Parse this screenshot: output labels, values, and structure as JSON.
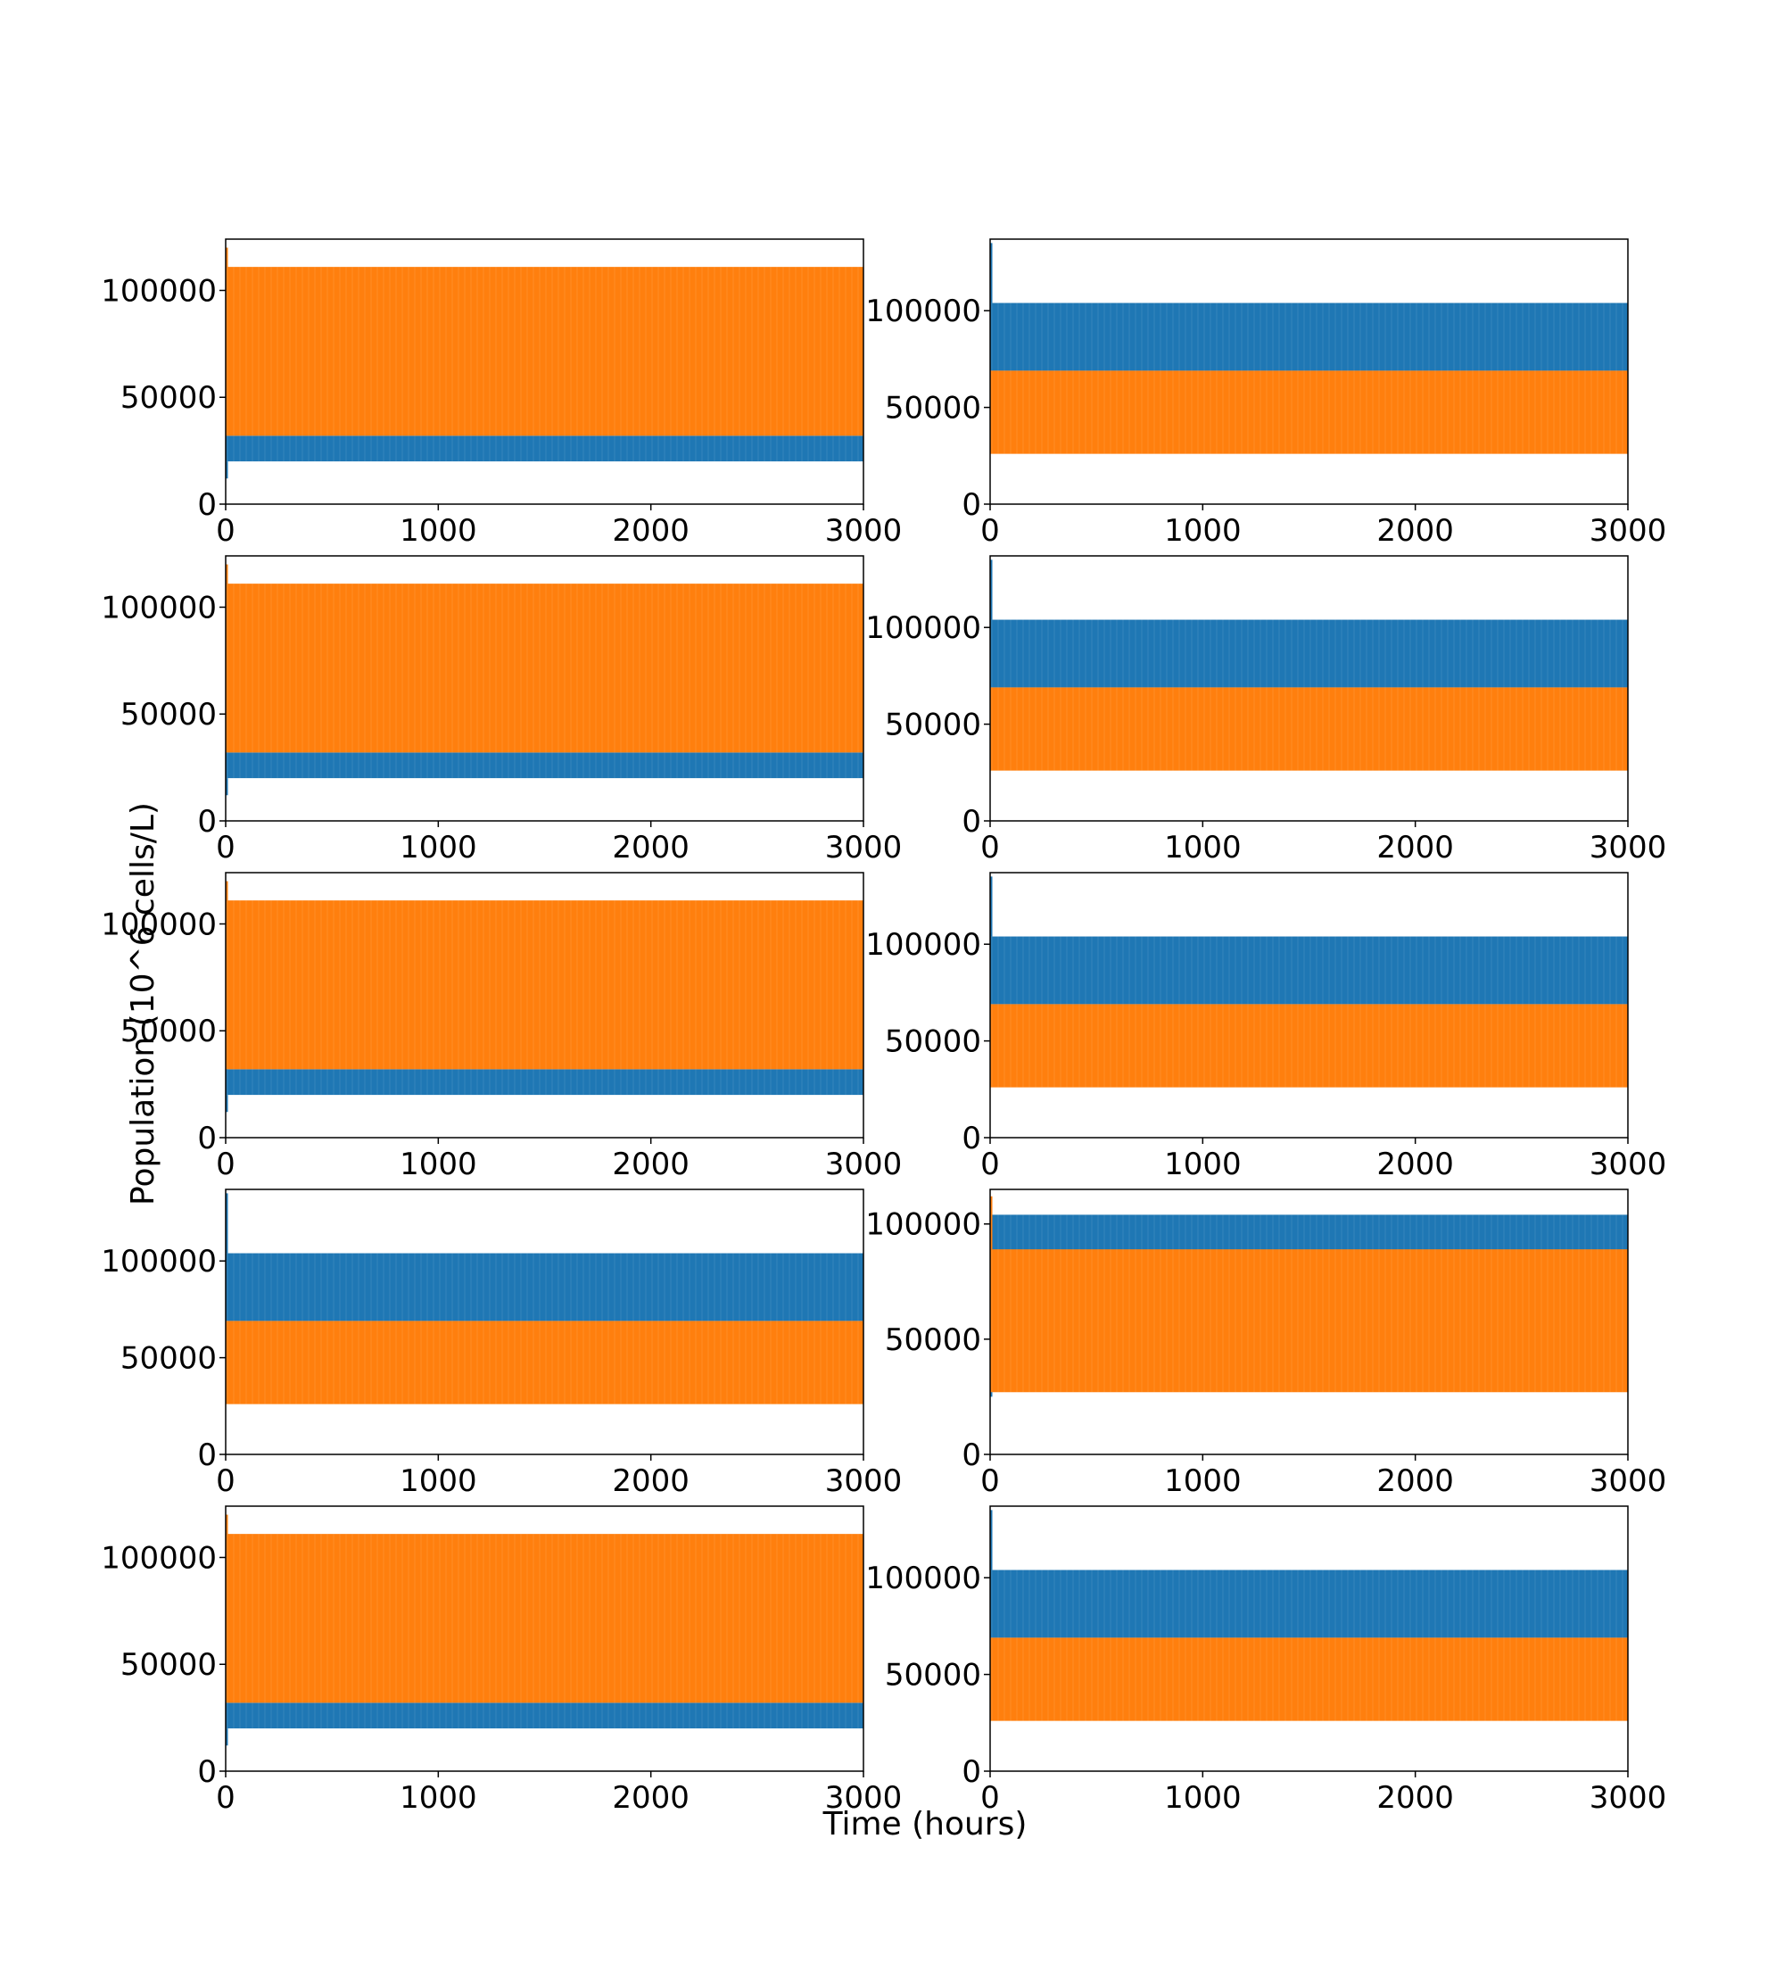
{
  "figure": {
    "xlabel": "Time (hours)",
    "ylabel": "Population (10^6 cells/L)"
  },
  "colors": {
    "series_a": "#1f77b4",
    "series_b": "#ff7f0e"
  },
  "chart_data": [
    {
      "type": "line",
      "panel": "row1-left",
      "xlim": [
        0,
        3000
      ],
      "ylim": [
        0,
        124000
      ],
      "xticks": [
        "0",
        "1000",
        "2000",
        "3000"
      ],
      "yticks": [
        "0",
        "50000",
        "100000"
      ],
      "series": [
        {
          "color": "#1f77b4",
          "x": [
            0,
            3000
          ],
          "band": [
            20000,
            32000
          ],
          "spike_max": 120000,
          "spike_min": 12000
        },
        {
          "color": "#ff7f0e",
          "x": [
            0,
            3000
          ],
          "band": [
            32000,
            111000
          ],
          "spike_max": 120000
        }
      ]
    },
    {
      "type": "line",
      "panel": "row1-right",
      "xlim": [
        0,
        3000
      ],
      "ylim": [
        0,
        137000
      ],
      "xticks": [
        "0",
        "1000",
        "2000",
        "3000"
      ],
      "yticks": [
        "0",
        "50000",
        "100000"
      ],
      "series": [
        {
          "color": "#1f77b4",
          "x": [
            0,
            3000
          ],
          "band": [
            69000,
            104000
          ],
          "spike_max": 135000
        },
        {
          "color": "#ff7f0e",
          "x": [
            0,
            3000
          ],
          "band": [
            26000,
            69000
          ]
        }
      ]
    },
    {
      "type": "line",
      "panel": "row2-left",
      "xlim": [
        0,
        3000
      ],
      "ylim": [
        0,
        124000
      ],
      "xticks": [
        "0",
        "1000",
        "2000",
        "3000"
      ],
      "yticks": [
        "0",
        "50000",
        "100000"
      ],
      "series": [
        {
          "color": "#1f77b4",
          "x": [
            0,
            3000
          ],
          "band": [
            20000,
            32000
          ],
          "spike_max": 120000,
          "spike_min": 12000
        },
        {
          "color": "#ff7f0e",
          "x": [
            0,
            3000
          ],
          "band": [
            32000,
            111000
          ],
          "spike_max": 120000
        }
      ]
    },
    {
      "type": "line",
      "panel": "row2-right",
      "xlim": [
        0,
        3000
      ],
      "ylim": [
        0,
        137000
      ],
      "xticks": [
        "0",
        "1000",
        "2000",
        "3000"
      ],
      "yticks": [
        "0",
        "50000",
        "100000"
      ],
      "series": [
        {
          "color": "#1f77b4",
          "x": [
            0,
            3000
          ],
          "band": [
            69000,
            104000
          ],
          "spike_max": 135000
        },
        {
          "color": "#ff7f0e",
          "x": [
            0,
            3000
          ],
          "band": [
            26000,
            69000
          ]
        }
      ]
    },
    {
      "type": "line",
      "panel": "row3-left",
      "xlim": [
        0,
        3000
      ],
      "ylim": [
        0,
        124000
      ],
      "xticks": [
        "0",
        "1000",
        "2000",
        "3000"
      ],
      "yticks": [
        "0",
        "50000",
        "100000"
      ],
      "series": [
        {
          "color": "#1f77b4",
          "x": [
            0,
            3000
          ],
          "band": [
            20000,
            32000
          ],
          "spike_max": 120000,
          "spike_min": 12000
        },
        {
          "color": "#ff7f0e",
          "x": [
            0,
            3000
          ],
          "band": [
            32000,
            111000
          ],
          "spike_max": 120000
        }
      ]
    },
    {
      "type": "line",
      "panel": "row3-right",
      "xlim": [
        0,
        3000
      ],
      "ylim": [
        0,
        137000
      ],
      "xticks": [
        "0",
        "1000",
        "2000",
        "3000"
      ],
      "yticks": [
        "0",
        "50000",
        "100000"
      ],
      "series": [
        {
          "color": "#1f77b4",
          "x": [
            0,
            3000
          ],
          "band": [
            69000,
            104000
          ],
          "spike_max": 135000
        },
        {
          "color": "#ff7f0e",
          "x": [
            0,
            3000
          ],
          "band": [
            26000,
            69000
          ]
        }
      ]
    },
    {
      "type": "line",
      "panel": "row4-left",
      "xlim": [
        0,
        3000
      ],
      "ylim": [
        0,
        137000
      ],
      "xticks": [
        "0",
        "1000",
        "2000",
        "3000"
      ],
      "yticks": [
        "0",
        "50000",
        "100000"
      ],
      "series": [
        {
          "color": "#1f77b4",
          "x": [
            0,
            3000
          ],
          "band": [
            69000,
            104000
          ],
          "spike_max": 135000
        },
        {
          "color": "#ff7f0e",
          "x": [
            0,
            3000
          ],
          "band": [
            26000,
            69000
          ]
        }
      ]
    },
    {
      "type": "line",
      "panel": "row4-right",
      "xlim": [
        0,
        3000
      ],
      "ylim": [
        0,
        115000
      ],
      "xticks": [
        "0",
        "1000",
        "2000",
        "3000"
      ],
      "yticks": [
        "0",
        "50000",
        "100000"
      ],
      "series": [
        {
          "color": "#1f77b4",
          "x": [
            0,
            3000
          ],
          "band": [
            73000,
            104000
          ],
          "spike_min": 25000
        },
        {
          "color": "#ff7f0e",
          "x": [
            0,
            3000
          ],
          "band": [
            27000,
            89000
          ],
          "spike_max": 112000
        }
      ]
    },
    {
      "type": "line",
      "panel": "row5-left",
      "xlim": [
        0,
        3000
      ],
      "ylim": [
        0,
        124000
      ],
      "xticks": [
        "0",
        "1000",
        "2000",
        "3000"
      ],
      "yticks": [
        "0",
        "50000",
        "100000"
      ],
      "series": [
        {
          "color": "#1f77b4",
          "x": [
            0,
            3000
          ],
          "band": [
            20000,
            32000
          ],
          "spike_max": 120000,
          "spike_min": 12000
        },
        {
          "color": "#ff7f0e",
          "x": [
            0,
            3000
          ],
          "band": [
            32000,
            111000
          ],
          "spike_max": 120000
        }
      ]
    },
    {
      "type": "line",
      "panel": "row5-right",
      "xlim": [
        0,
        3000
      ],
      "ylim": [
        0,
        137000
      ],
      "xticks": [
        "0",
        "1000",
        "2000",
        "3000"
      ],
      "yticks": [
        "0",
        "50000",
        "100000"
      ],
      "series": [
        {
          "color": "#1f77b4",
          "x": [
            0,
            3000
          ],
          "band": [
            69000,
            104000
          ],
          "spike_max": 135000
        },
        {
          "color": "#ff7f0e",
          "x": [
            0,
            3000
          ],
          "band": [
            26000,
            69000
          ]
        }
      ]
    }
  ]
}
